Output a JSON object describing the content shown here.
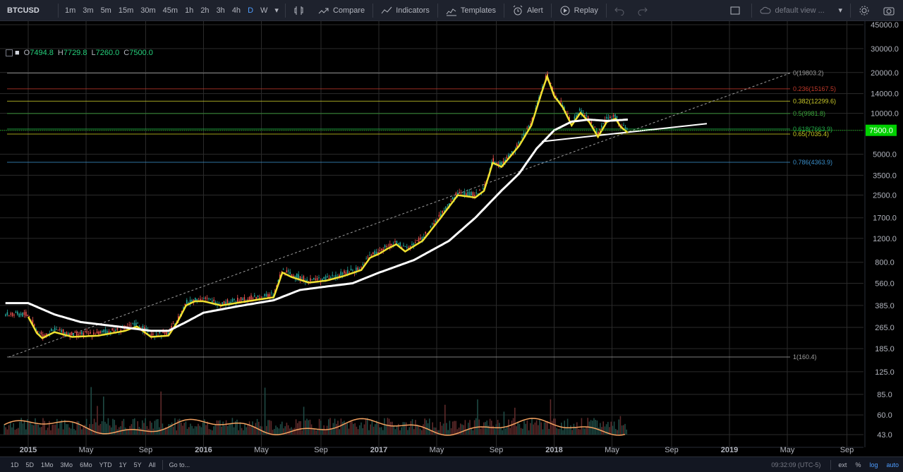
{
  "toolbar": {
    "symbol": "BTCUSD",
    "intervals": [
      "1m",
      "3m",
      "5m",
      "15m",
      "30m",
      "45m",
      "1h",
      "2h",
      "3h",
      "4h",
      "D",
      "W"
    ],
    "active_interval": "D",
    "compare_label": "Compare",
    "indicators_label": "Indicators",
    "templates_label": "Templates",
    "alert_label": "Alert",
    "replay_label": "Replay",
    "view_label": "default view ..."
  },
  "legend": {
    "o_label": "O",
    "o": "7494.8",
    "h_label": "H",
    "h": "7729.8",
    "l_label": "L",
    "l": "7260.0",
    "c_label": "C",
    "c": "7500.0"
  },
  "colors": {
    "background": "#000000",
    "up": "#26a69a",
    "down": "#ef5350",
    "ma_yellow": "#f0e130",
    "ma_white": "#ffffff",
    "last_price": "#00d000",
    "grid": "#2b2b2b"
  },
  "chart_data": {
    "type": "line",
    "symbol": "BTCUSD",
    "scale": "log",
    "ylim": [
      43,
      45000
    ],
    "y_ticks": [
      "45000.0",
      "30000.0",
      "20000.0",
      "14000.0",
      "10000.0",
      "7500.0",
      "5000.0",
      "3500.0",
      "2500.0",
      "1700.0",
      "1200.0",
      "800.0",
      "560.0",
      "385.0",
      "265.0",
      "185.0",
      "125.0",
      "85.0",
      "60.0",
      "43.0"
    ],
    "x_ticks": [
      "2015",
      "May",
      "Sep",
      "2016",
      "May",
      "Sep",
      "2017",
      "May",
      "Sep",
      "2018",
      "May",
      "Sep",
      "2019",
      "May",
      "Sep"
    ],
    "last_price": "7500.0",
    "fib_levels": [
      {
        "label": "0(19803.2)",
        "value": 19803.2,
        "color": "#9e9e9e"
      },
      {
        "label": "0.236(15167.5)",
        "value": 15167.5,
        "color": "#c0392b"
      },
      {
        "label": "0.382(12299.6)",
        "value": 12299.6,
        "color": "#c9c92a"
      },
      {
        "label": "0.5(9981.8)",
        "value": 9981.8,
        "color": "#3aa83a"
      },
      {
        "label": "0.618(7663.9)",
        "value": 7663.9,
        "color": "#22b04a"
      },
      {
        "label": "0.65(7035.4)",
        "value": 7035.4,
        "color": "#c8c820"
      },
      {
        "label": "0.786(4363.9)",
        "value": 4363.9,
        "color": "#3a8ec9"
      },
      {
        "label": "1(160.4)",
        "value": 160.4,
        "color": "#9e9e9e"
      }
    ],
    "series": [
      {
        "name": "",
        "values": [
          [
            2015.0,
            330
          ],
          [
            2015.05,
            250
          ],
          [
            2015.08,
            230
          ],
          [
            2015.15,
            255
          ],
          [
            2015.25,
            235
          ],
          [
            2015.4,
            240
          ],
          [
            2015.55,
            260
          ],
          [
            2015.62,
            280
          ],
          [
            2015.7,
            235
          ],
          [
            2015.8,
            240
          ],
          [
            2015.85,
            300
          ],
          [
            2015.9,
            400
          ],
          [
            2015.95,
            430
          ],
          [
            2016.0,
            430
          ],
          [
            2016.1,
            400
          ],
          [
            2016.2,
            420
          ],
          [
            2016.3,
            440
          ],
          [
            2016.4,
            460
          ],
          [
            2016.45,
            700
          ],
          [
            2016.5,
            650
          ],
          [
            2016.55,
            620
          ],
          [
            2016.6,
            590
          ],
          [
            2016.7,
            610
          ],
          [
            2016.8,
            660
          ],
          [
            2016.9,
            730
          ],
          [
            2016.95,
            900
          ],
          [
            2017.0,
            960
          ],
          [
            2017.05,
            1050
          ],
          [
            2017.1,
            1130
          ],
          [
            2017.15,
            1000
          ],
          [
            2017.25,
            1200
          ],
          [
            2017.35,
            1750
          ],
          [
            2017.45,
            2600
          ],
          [
            2017.55,
            2500
          ],
          [
            2017.6,
            2800
          ],
          [
            2017.65,
            4500
          ],
          [
            2017.7,
            4200
          ],
          [
            2017.8,
            6000
          ],
          [
            2017.87,
            8500
          ],
          [
            2017.93,
            15000
          ],
          [
            2017.96,
            19500
          ],
          [
            2018.0,
            14000
          ],
          [
            2018.05,
            11500
          ],
          [
            2018.1,
            8500
          ],
          [
            2018.15,
            10500
          ],
          [
            2018.2,
            9000
          ],
          [
            2018.25,
            7000
          ],
          [
            2018.3,
            9000
          ],
          [
            2018.35,
            9500
          ],
          [
            2018.38,
            8300
          ],
          [
            2018.42,
            7500
          ]
        ]
      },
      {
        "name": "",
        "values": [
          [
            2015.0,
            400
          ],
          [
            2015.15,
            330
          ],
          [
            2015.3,
            290
          ],
          [
            2015.5,
            270
          ],
          [
            2015.7,
            250
          ],
          [
            2015.8,
            250
          ],
          [
            2015.9,
            290
          ],
          [
            2016.0,
            340
          ],
          [
            2016.2,
            380
          ],
          [
            2016.4,
            420
          ],
          [
            2016.55,
            500
          ],
          [
            2016.7,
            530
          ],
          [
            2016.85,
            560
          ],
          [
            2017.0,
            670
          ],
          [
            2017.2,
            830
          ],
          [
            2017.4,
            1150
          ],
          [
            2017.55,
            1700
          ],
          [
            2017.7,
            2700
          ],
          [
            2017.8,
            3600
          ],
          [
            2017.9,
            5500
          ],
          [
            2018.0,
            7500
          ],
          [
            2018.1,
            8700
          ],
          [
            2018.2,
            9000
          ],
          [
            2018.3,
            8800
          ],
          [
            2018.42,
            9000
          ]
        ]
      }
    ]
  },
  "bottom": {
    "ranges": [
      "1D",
      "5D",
      "1Mo",
      "3Mo",
      "6Mo",
      "YTD",
      "1Y",
      "5Y",
      "All"
    ],
    "goto_label": "Go to...",
    "clock": "09:32:09 (UTC-5)",
    "options": [
      "ext",
      "%",
      "log",
      "auto"
    ],
    "active_options": [
      "log",
      "auto"
    ]
  }
}
